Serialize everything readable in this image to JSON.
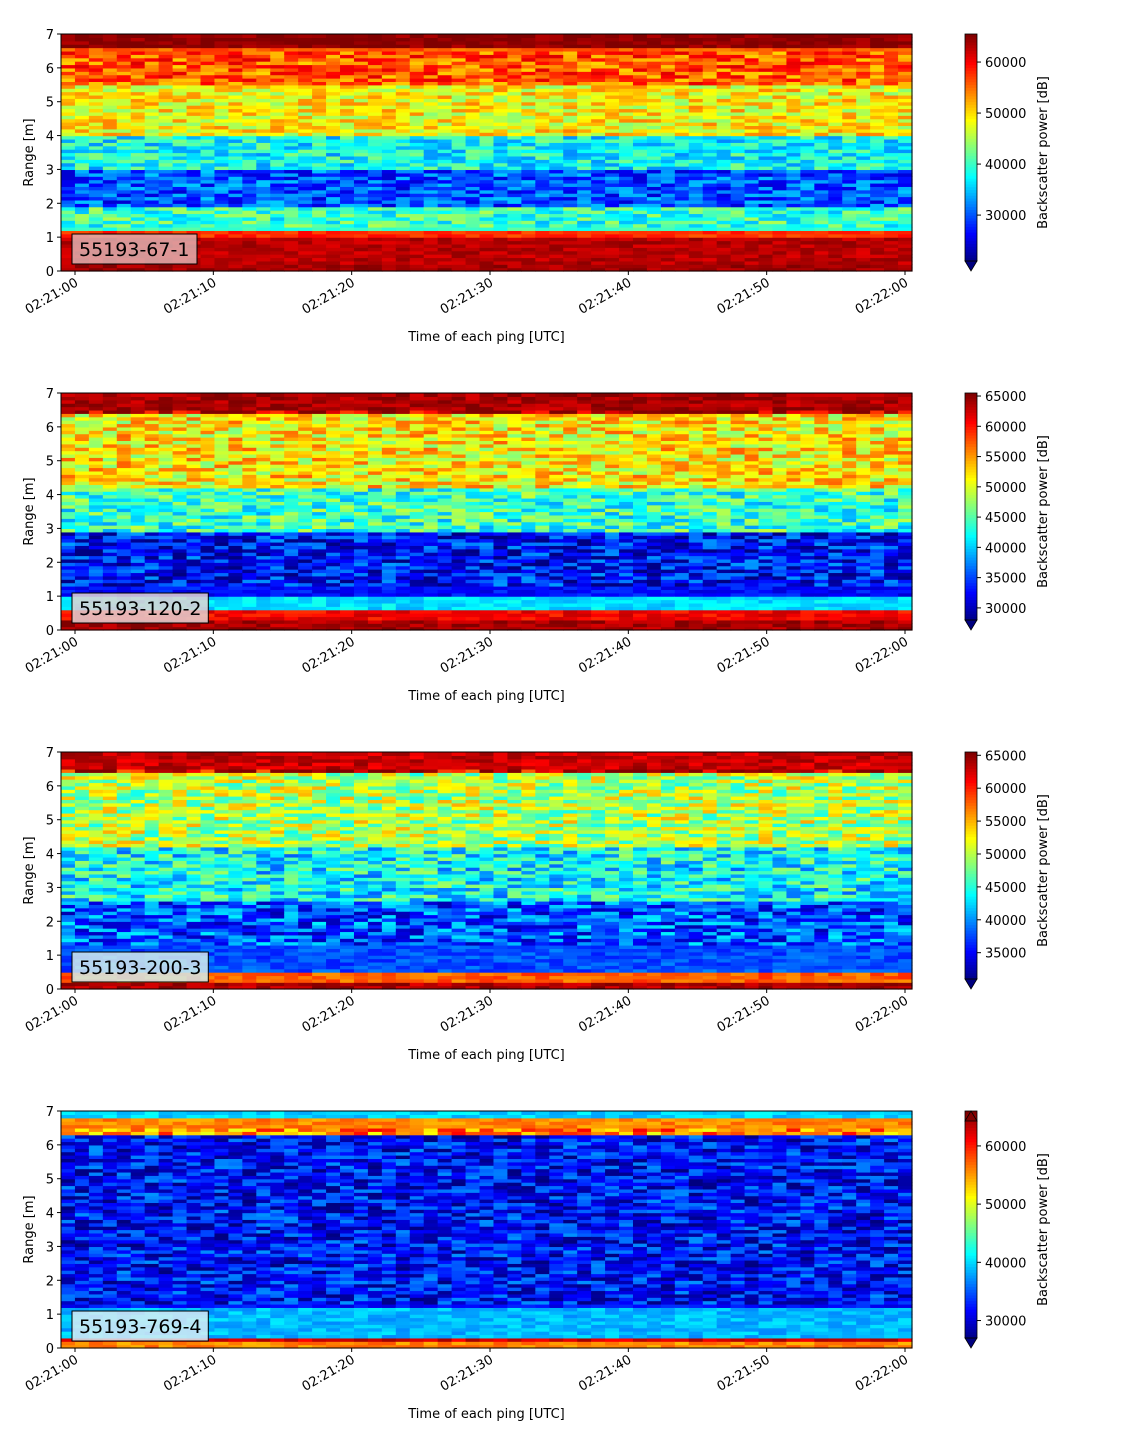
{
  "chart_data": [
    {
      "type": "heatmap",
      "xlabel": "Time of each ping [UTC]",
      "ylabel": "Range [m]",
      "x_ticks": [
        "02:21:00",
        "02:21:10",
        "02:21:20",
        "02:21:30",
        "02:21:40",
        "02:21:50",
        "02:22:00"
      ],
      "y_ticks": [
        "0",
        "1",
        "2",
        "3",
        "4",
        "5",
        "6",
        "7"
      ],
      "x_range": [
        "02:21:00",
        "02:22:00"
      ],
      "ylim": [
        0,
        7
      ],
      "label": "55193-67-1",
      "label_bg": "#dfb0b0",
      "colorbar": {
        "label": "Backscatter power [dB]",
        "ticks": [
          30000,
          40000,
          50000,
          60000
        ],
        "range": [
          21000,
          65500
        ],
        "extend": "min",
        "colormap": "jet"
      },
      "bands": [
        {
          "y": [
            0,
            0.25
          ],
          "value": 64000
        },
        {
          "y": [
            0.25,
            1.05
          ],
          "value": 63000
        },
        {
          "y": [
            1.05,
            1.25
          ],
          "value": 58000
        },
        {
          "y": [
            1.25,
            1.9
          ],
          "value": 40000
        },
        {
          "y": [
            1.9,
            3.0
          ],
          "value": 30000
        },
        {
          "y": [
            3.0,
            4.0
          ],
          "value": 38000
        },
        {
          "y": [
            4.0,
            5.5
          ],
          "value": 49000
        },
        {
          "y": [
            5.5,
            6.6
          ],
          "value": 56000
        },
        {
          "y": [
            6.6,
            7.0
          ],
          "value": 65000
        }
      ]
    },
    {
      "type": "heatmap",
      "xlabel": "Time of each ping [UTC]",
      "ylabel": "Range [m]",
      "x_ticks": [
        "02:21:00",
        "02:21:10",
        "02:21:20",
        "02:21:30",
        "02:21:40",
        "02:21:50",
        "02:22:00"
      ],
      "y_ticks": [
        "0",
        "1",
        "2",
        "3",
        "4",
        "5",
        "6",
        "7"
      ],
      "x_range": [
        "02:21:00",
        "02:22:00"
      ],
      "ylim": [
        0,
        7
      ],
      "label": "55193-120-2",
      "label_bg": "#e4d4d4",
      "colorbar": {
        "label": "Backscatter power [dB]",
        "ticks": [
          30000,
          35000,
          40000,
          45000,
          50000,
          55000,
          60000,
          65000
        ],
        "range": [
          28000,
          65500
        ],
        "extend": "min",
        "colormap": "jet"
      },
      "bands": [
        {
          "y": [
            0,
            0.35
          ],
          "value": 64000
        },
        {
          "y": [
            0.35,
            0.65
          ],
          "value": 61000
        },
        {
          "y": [
            0.65,
            1.0
          ],
          "value": 41000
        },
        {
          "y": [
            1.0,
            2.9
          ],
          "value": 33000
        },
        {
          "y": [
            2.9,
            4.2
          ],
          "value": 44000
        },
        {
          "y": [
            4.2,
            6.4
          ],
          "value": 52000
        },
        {
          "y": [
            6.4,
            7.0
          ],
          "value": 64000
        }
      ]
    },
    {
      "type": "heatmap",
      "xlabel": "Time of each ping [UTC]",
      "ylabel": "Range [m]",
      "x_ticks": [
        "02:21:00",
        "02:21:10",
        "02:21:20",
        "02:21:30",
        "02:21:40",
        "02:21:50",
        "02:22:00"
      ],
      "y_ticks": [
        "0",
        "1",
        "2",
        "3",
        "4",
        "5",
        "6",
        "7"
      ],
      "x_range": [
        "02:21:00",
        "02:22:00"
      ],
      "ylim": [
        0,
        7
      ],
      "label": "55193-200-3",
      "label_bg": "#d4ecec",
      "colorbar": {
        "label": "Backscatter power [dB]",
        "ticks": [
          35000,
          40000,
          45000,
          50000,
          55000,
          60000,
          65000
        ],
        "range": [
          31000,
          65500
        ],
        "extend": "min",
        "colormap": "jet"
      },
      "bands": [
        {
          "y": [
            0,
            0.25
          ],
          "value": 64000
        },
        {
          "y": [
            0.25,
            0.55
          ],
          "value": 58000
        },
        {
          "y": [
            0.55,
            2.6
          ],
          "value": 38000
        },
        {
          "y": [
            2.6,
            4.2
          ],
          "value": 44000
        },
        {
          "y": [
            4.2,
            6.4
          ],
          "value": 50000
        },
        {
          "y": [
            6.4,
            7.0
          ],
          "value": 63000
        }
      ]
    },
    {
      "type": "heatmap",
      "xlabel": "Time of each ping [UTC]",
      "ylabel": "Range [m]",
      "x_ticks": [
        "02:21:00",
        "02:21:10",
        "02:21:20",
        "02:21:30",
        "02:21:40",
        "02:21:50",
        "02:22:00"
      ],
      "y_ticks": [
        "0",
        "1",
        "2",
        "3",
        "4",
        "5",
        "6",
        "7"
      ],
      "x_range": [
        "02:21:00",
        "02:22:00"
      ],
      "ylim": [
        0,
        7
      ],
      "label": "55193-769-4",
      "label_bg": "#d8ecf4",
      "colorbar": {
        "label": "Backscatter power [dB]",
        "ticks": [
          30000,
          40000,
          50000,
          60000
        ],
        "range": [
          27000,
          66000
        ],
        "extend": "both",
        "colormap": "jet"
      },
      "bands": [
        {
          "y": [
            0,
            0.2
          ],
          "value": 56000
        },
        {
          "y": [
            0.2,
            0.35
          ],
          "value": 63000
        },
        {
          "y": [
            0.35,
            1.2
          ],
          "value": 39000
        },
        {
          "y": [
            1.2,
            6.3
          ],
          "value": 32000
        },
        {
          "y": [
            6.3,
            6.8
          ],
          "value": 56000
        },
        {
          "y": [
            6.8,
            7.0
          ],
          "value": 40000
        }
      ]
    }
  ]
}
